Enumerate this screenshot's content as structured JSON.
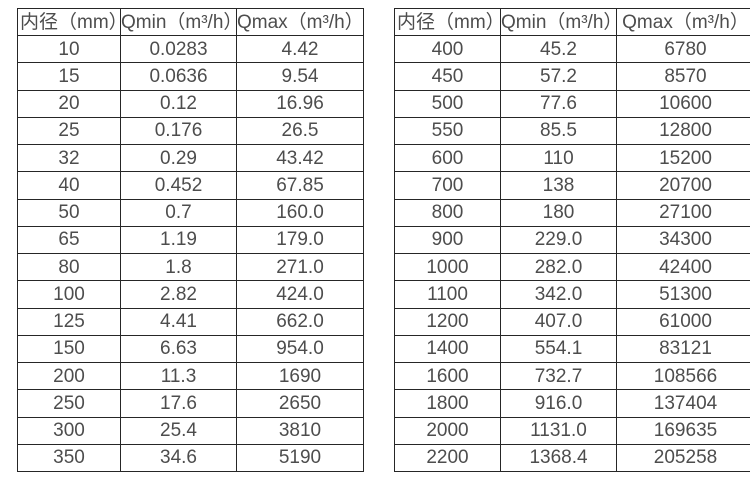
{
  "page": {
    "background_color": "#ffffff",
    "text_color": "#4d4d4d",
    "border_color": "#262626"
  },
  "tables": [
    {
      "name": "small-diameter-flow-specs",
      "headers": [
        "内径（mm）",
        "Qmin（m³/h）",
        "Qmax（m³/h）"
      ],
      "rows": [
        [
          "10",
          "0.0283",
          "4.42"
        ],
        [
          "15",
          "0.0636",
          "9.54"
        ],
        [
          "20",
          "0.12",
          "16.96"
        ],
        [
          "25",
          "0.176",
          "26.5"
        ],
        [
          "32",
          "0.29",
          "43.42"
        ],
        [
          "40",
          "0.452",
          "67.85"
        ],
        [
          "50",
          "0.7",
          "160.0"
        ],
        [
          "65",
          "1.19",
          "179.0"
        ],
        [
          "80",
          "1.8",
          "271.0"
        ],
        [
          "100",
          "2.82",
          "424.0"
        ],
        [
          "125",
          "4.41",
          "662.0"
        ],
        [
          "150",
          "6.63",
          "954.0"
        ],
        [
          "200",
          "11.3",
          "1690"
        ],
        [
          "250",
          "17.6",
          "2650"
        ],
        [
          "300",
          "25.4",
          "3810"
        ],
        [
          "350",
          "34.6",
          "5190"
        ]
      ]
    },
    {
      "name": "large-diameter-flow-specs",
      "headers": [
        "内径（mm）",
        "Qmin（m³/h）",
        "Qmax（m³/h）"
      ],
      "rows": [
        [
          "400",
          "45.2",
          "6780"
        ],
        [
          "450",
          "57.2",
          "8570"
        ],
        [
          "500",
          "77.6",
          "10600"
        ],
        [
          "550",
          "85.5",
          "12800"
        ],
        [
          "600",
          "110",
          "15200"
        ],
        [
          "700",
          "138",
          "20700"
        ],
        [
          "800",
          "180",
          "27100"
        ],
        [
          "900",
          "229.0",
          "34300"
        ],
        [
          "1000",
          "282.0",
          "42400"
        ],
        [
          "1100",
          "342.0",
          "51300"
        ],
        [
          "1200",
          "407.0",
          "61000"
        ],
        [
          "1400",
          "554.1",
          "83121"
        ],
        [
          "1600",
          "732.7",
          "108566"
        ],
        [
          "1800",
          "916.0",
          "137404"
        ],
        [
          "2000",
          "1131.0",
          "169635"
        ],
        [
          "2200",
          "1368.4",
          "205258"
        ]
      ]
    }
  ]
}
